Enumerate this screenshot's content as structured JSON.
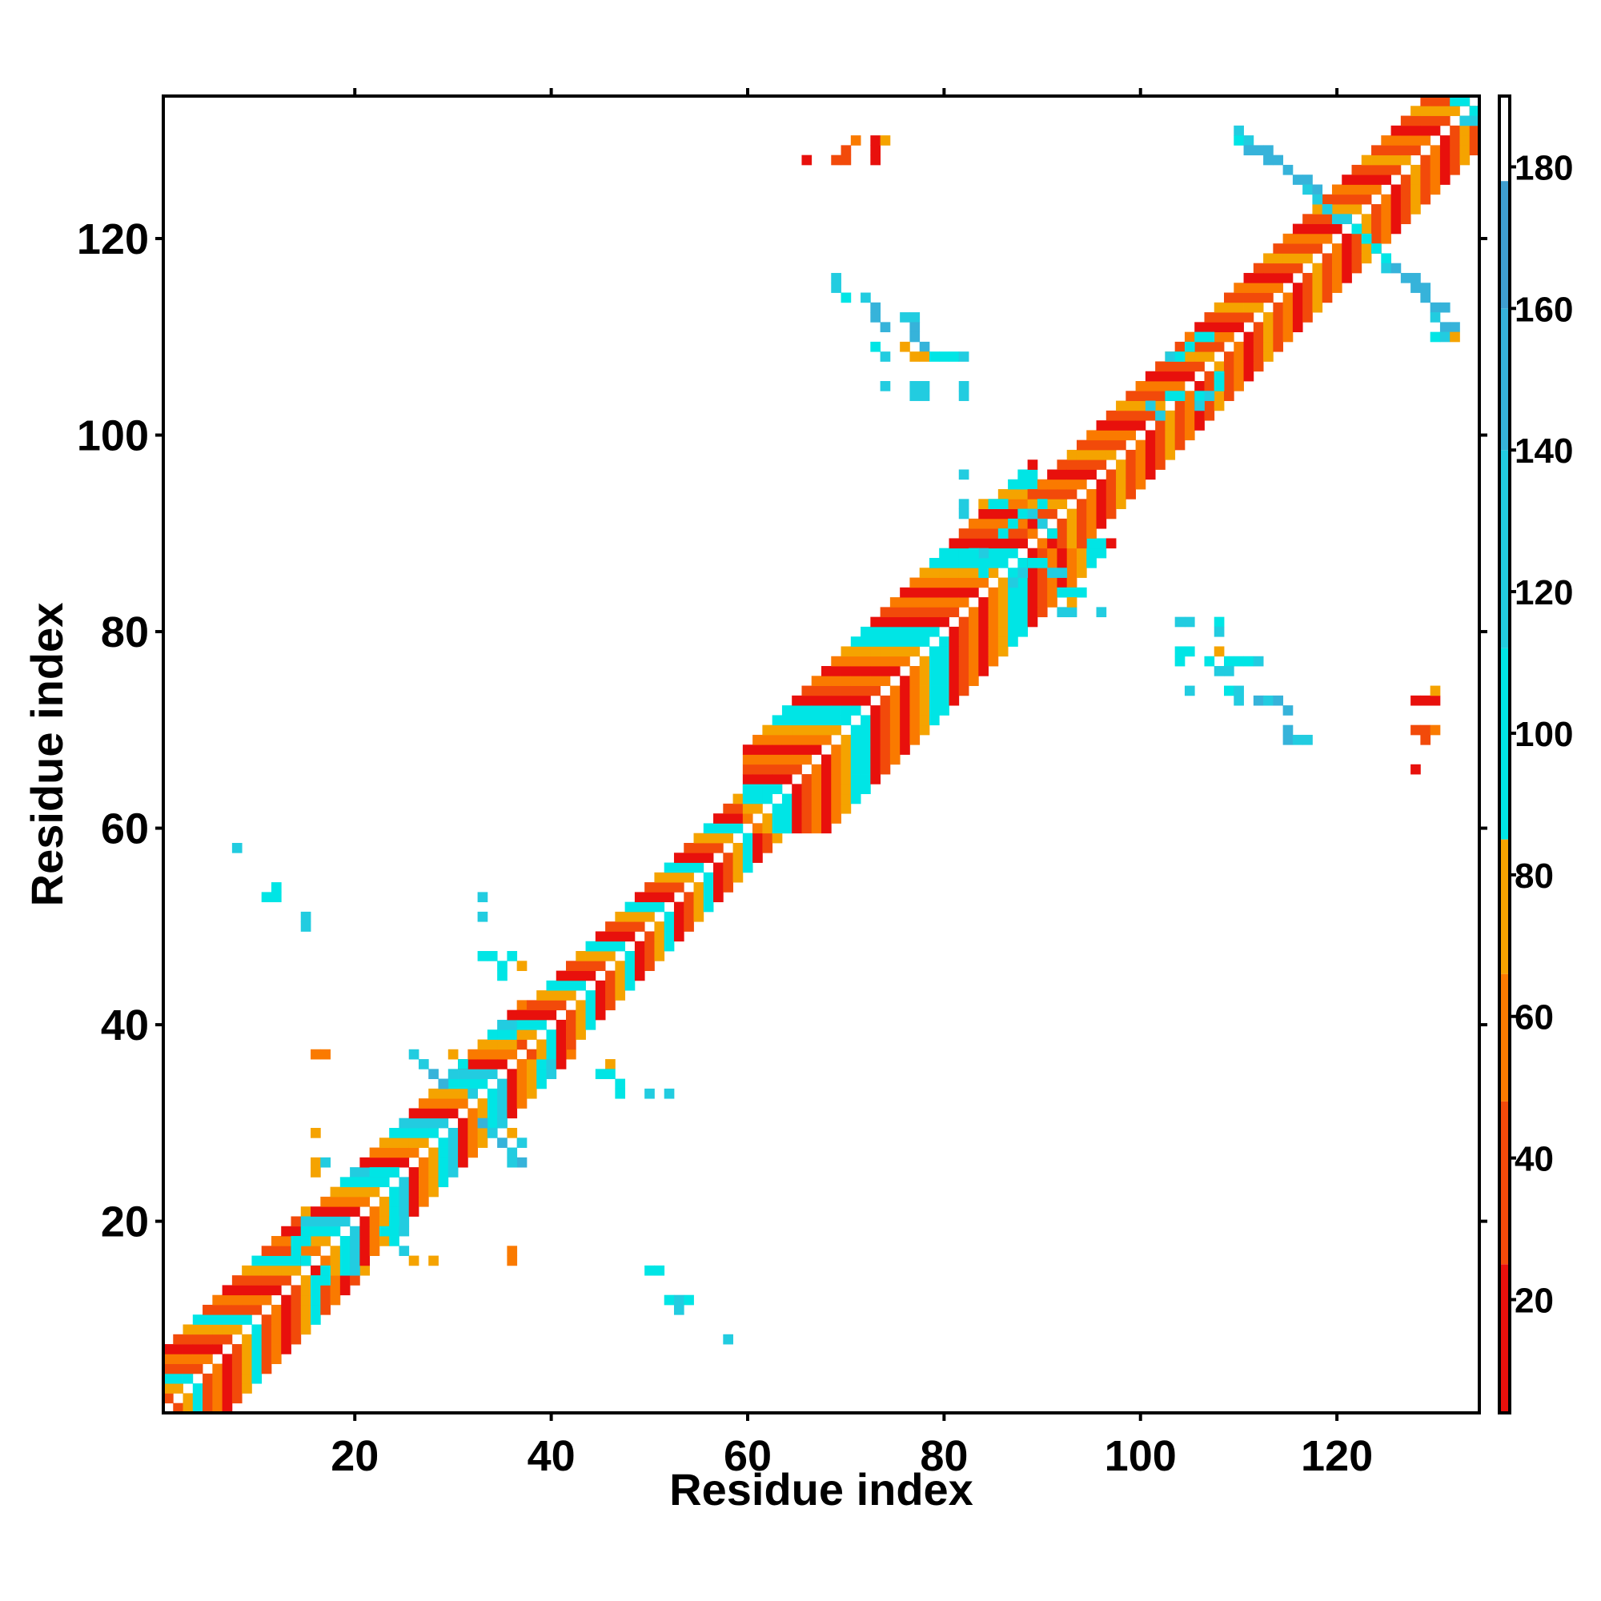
{
  "chart_data": {
    "type": "heatmap",
    "title": "",
    "xlabel": "Residue index",
    "ylabel": "Residue index",
    "x_range": [
      1,
      134
    ],
    "y_range": [
      1,
      134
    ],
    "x_ticks": [
      20,
      40,
      60,
      80,
      100,
      120
    ],
    "y_ticks": [
      20,
      40,
      60,
      80,
      100,
      120
    ],
    "colorbar": {
      "range": [
        4,
        190
      ],
      "ticks": [
        20,
        40,
        60,
        80,
        100,
        120,
        140,
        160,
        180
      ],
      "stops": [
        {
          "from": 4,
          "to": 25,
          "color": "#e8100c"
        },
        {
          "from": 25,
          "to": 48,
          "color": "#f24a0a"
        },
        {
          "from": 48,
          "to": 66,
          "color": "#fa7a00"
        },
        {
          "from": 66,
          "to": 85,
          "color": "#f5a300"
        },
        {
          "from": 85,
          "to": 112,
          "color": "#00e5e5"
        },
        {
          "from": 112,
          "to": 140,
          "color": "#22cce0"
        },
        {
          "from": 140,
          "to": 160,
          "color": "#36b3da"
        },
        {
          "from": 160,
          "to": 178,
          "color": "#3f9fd0"
        },
        {
          "from": 178,
          "to": 190,
          "color": "#ffffff"
        }
      ]
    },
    "grid": false,
    "legend": "colorbar-right",
    "diagonal_bands": [
      {
        "start": 1,
        "end": 15,
        "offsets": [
          1,
          2,
          3,
          4,
          5,
          6
        ],
        "values": [
          18,
          45,
          70,
          95,
          30,
          60
        ]
      },
      {
        "start": 15,
        "end": 37,
        "offsets": [
          1,
          2,
          3,
          4,
          5
        ],
        "values": [
          20,
          50,
          72,
          100,
          120
        ]
      },
      {
        "start": 37,
        "end": 60,
        "offsets": [
          1,
          2,
          3,
          4
        ],
        "values": [
          22,
          48,
          75,
          98
        ]
      },
      {
        "start": 60,
        "end": 89,
        "offsets": [
          1,
          2,
          3,
          4,
          5,
          6,
          7,
          8
        ],
        "values": [
          15,
          40,
          65,
          25,
          55,
          80,
          100,
          95
        ]
      },
      {
        "start": 89,
        "end": 134,
        "offsets": [
          1,
          2,
          3,
          4,
          5
        ],
        "values": [
          18,
          45,
          70,
          30,
          60
        ]
      }
    ],
    "contacts": [
      {
        "x": 8,
        "y": 58,
        "v": 140
      },
      {
        "x": 11,
        "y": 53,
        "v": 105
      },
      {
        "x": 12,
        "y": 54,
        "v": 110
      },
      {
        "x": 12,
        "y": 53,
        "v": 105
      },
      {
        "x": 15,
        "y": 50,
        "v": 120
      },
      {
        "x": 15,
        "y": 51,
        "v": 115
      },
      {
        "x": 33,
        "y": 53,
        "v": 140
      },
      {
        "x": 33,
        "y": 51,
        "v": 140
      },
      {
        "x": 33,
        "y": 47,
        "v": 105
      },
      {
        "x": 34,
        "y": 47,
        "v": 105
      },
      {
        "x": 35,
        "y": 46,
        "v": 105
      },
      {
        "x": 36,
        "y": 47,
        "v": 95
      },
      {
        "x": 37,
        "y": 46,
        "v": 75
      },
      {
        "x": 35,
        "y": 45,
        "v": 100
      },
      {
        "x": 16,
        "y": 37,
        "v": 55
      },
      {
        "x": 17,
        "y": 37,
        "v": 55
      },
      {
        "x": 16,
        "y": 29,
        "v": 75
      },
      {
        "x": 16,
        "y": 26,
        "v": 75
      },
      {
        "x": 16,
        "y": 25,
        "v": 75
      },
      {
        "x": 17,
        "y": 26,
        "v": 130
      },
      {
        "x": 25,
        "y": 17,
        "v": 140
      },
      {
        "x": 26,
        "y": 16,
        "v": 75
      },
      {
        "x": 28,
        "y": 16,
        "v": 75
      },
      {
        "x": 36,
        "y": 17,
        "v": 55
      },
      {
        "x": 36,
        "y": 16,
        "v": 55
      },
      {
        "x": 46,
        "y": 36,
        "v": 75
      },
      {
        "x": 45,
        "y": 35,
        "v": 100
      },
      {
        "x": 46,
        "y": 35,
        "v": 95
      },
      {
        "x": 47,
        "y": 34,
        "v": 100
      },
      {
        "x": 47,
        "y": 33,
        "v": 105
      },
      {
        "x": 50,
        "y": 33,
        "v": 140
      },
      {
        "x": 52,
        "y": 33,
        "v": 140
      },
      {
        "x": 50,
        "y": 15,
        "v": 100
      },
      {
        "x": 51,
        "y": 15,
        "v": 100
      },
      {
        "x": 52,
        "y": 12,
        "v": 110
      },
      {
        "x": 53,
        "y": 12,
        "v": 115
      },
      {
        "x": 54,
        "y": 12,
        "v": 110
      },
      {
        "x": 53,
        "y": 11,
        "v": 140
      },
      {
        "x": 58,
        "y": 8,
        "v": 140
      },
      {
        "x": 26,
        "y": 37,
        "v": 120
      },
      {
        "x": 27,
        "y": 36,
        "v": 140
      },
      {
        "x": 28,
        "y": 35,
        "v": 145
      },
      {
        "x": 29,
        "y": 34,
        "v": 150
      },
      {
        "x": 30,
        "y": 37,
        "v": 75
      },
      {
        "x": 31,
        "y": 36,
        "v": 100
      },
      {
        "x": 32,
        "y": 33,
        "v": 120
      },
      {
        "x": 33,
        "y": 30,
        "v": 145
      },
      {
        "x": 34,
        "y": 29,
        "v": 140
      },
      {
        "x": 35,
        "y": 28,
        "v": 145
      },
      {
        "x": 36,
        "y": 27,
        "v": 140
      },
      {
        "x": 35,
        "y": 30,
        "v": 140
      },
      {
        "x": 36,
        "y": 29,
        "v": 75
      },
      {
        "x": 37,
        "y": 28,
        "v": 120
      },
      {
        "x": 37,
        "y": 26,
        "v": 145
      },
      {
        "x": 36,
        "y": 26,
        "v": 140
      },
      {
        "x": 66,
        "y": 128,
        "v": 15
      },
      {
        "x": 69,
        "y": 128,
        "v": 40
      },
      {
        "x": 70,
        "y": 128,
        "v": 45
      },
      {
        "x": 70,
        "y": 129,
        "v": 40
      },
      {
        "x": 71,
        "y": 130,
        "v": 60
      },
      {
        "x": 73,
        "y": 128,
        "v": 18
      },
      {
        "x": 73,
        "y": 129,
        "v": 20
      },
      {
        "x": 73,
        "y": 130,
        "v": 25
      },
      {
        "x": 74,
        "y": 130,
        "v": 75
      },
      {
        "x": 69,
        "y": 116,
        "v": 140
      },
      {
        "x": 69,
        "y": 115,
        "v": 130
      },
      {
        "x": 70,
        "y": 114,
        "v": 110
      },
      {
        "x": 72,
        "y": 114,
        "v": 140
      },
      {
        "x": 73,
        "y": 113,
        "v": 145
      },
      {
        "x": 73,
        "y": 112,
        "v": 150
      },
      {
        "x": 74,
        "y": 111,
        "v": 145
      },
      {
        "x": 76,
        "y": 112,
        "v": 140
      },
      {
        "x": 77,
        "y": 112,
        "v": 140
      },
      {
        "x": 77,
        "y": 111,
        "v": 145
      },
      {
        "x": 77,
        "y": 110,
        "v": 150
      },
      {
        "x": 78,
        "y": 109,
        "v": 145
      },
      {
        "x": 73,
        "y": 109,
        "v": 100
      },
      {
        "x": 74,
        "y": 108,
        "v": 120
      },
      {
        "x": 76,
        "y": 109,
        "v": 75
      },
      {
        "x": 77,
        "y": 108,
        "v": 70
      },
      {
        "x": 78,
        "y": 108,
        "v": 75
      },
      {
        "x": 79,
        "y": 108,
        "v": 100
      },
      {
        "x": 81,
        "y": 108,
        "v": 110
      },
      {
        "x": 82,
        "y": 108,
        "v": 120
      },
      {
        "x": 80,
        "y": 108,
        "v": 105
      },
      {
        "x": 74,
        "y": 105,
        "v": 140
      },
      {
        "x": 77,
        "y": 105,
        "v": 120
      },
      {
        "x": 78,
        "y": 104,
        "v": 130
      },
      {
        "x": 77,
        "y": 104,
        "v": 130
      },
      {
        "x": 78,
        "y": 105,
        "v": 120
      },
      {
        "x": 82,
        "y": 105,
        "v": 140
      },
      {
        "x": 82,
        "y": 104,
        "v": 140
      },
      {
        "x": 82,
        "y": 96,
        "v": 140
      },
      {
        "x": 82,
        "y": 93,
        "v": 120
      },
      {
        "x": 82,
        "y": 92,
        "v": 120
      },
      {
        "x": 84,
        "y": 93,
        "v": 75
      },
      {
        "x": 85,
        "y": 93,
        "v": 100
      },
      {
        "x": 86,
        "y": 93,
        "v": 105
      },
      {
        "x": 92,
        "y": 84,
        "v": 100
      },
      {
        "x": 93,
        "y": 84,
        "v": 110
      },
      {
        "x": 94,
        "y": 84,
        "v": 110
      },
      {
        "x": 92,
        "y": 82,
        "v": 130
      },
      {
        "x": 93,
        "y": 82,
        "v": 130
      },
      {
        "x": 93,
        "y": 83,
        "v": 75
      },
      {
        "x": 96,
        "y": 82,
        "v": 140
      },
      {
        "x": 104,
        "y": 81,
        "v": 140
      },
      {
        "x": 105,
        "y": 81,
        "v": 140
      },
      {
        "x": 108,
        "y": 81,
        "v": 110
      },
      {
        "x": 108,
        "y": 80,
        "v": 120
      },
      {
        "x": 104,
        "y": 78,
        "v": 100
      },
      {
        "x": 104,
        "y": 77,
        "v": 110
      },
      {
        "x": 105,
        "y": 78,
        "v": 110
      },
      {
        "x": 107,
        "y": 77,
        "v": 100
      },
      {
        "x": 108,
        "y": 78,
        "v": 75
      },
      {
        "x": 109,
        "y": 77,
        "v": 100
      },
      {
        "x": 110,
        "y": 77,
        "v": 105
      },
      {
        "x": 111,
        "y": 77,
        "v": 105
      },
      {
        "x": 112,
        "y": 77,
        "v": 140
      },
      {
        "x": 108,
        "y": 76,
        "v": 120
      },
      {
        "x": 109,
        "y": 76,
        "v": 130
      },
      {
        "x": 105,
        "y": 74,
        "v": 140
      },
      {
        "x": 109,
        "y": 74,
        "v": 110
      },
      {
        "x": 110,
        "y": 74,
        "v": 130
      },
      {
        "x": 110,
        "y": 73,
        "v": 140
      },
      {
        "x": 112,
        "y": 73,
        "v": 145
      },
      {
        "x": 113,
        "y": 73,
        "v": 140
      },
      {
        "x": 114,
        "y": 73,
        "v": 150
      },
      {
        "x": 115,
        "y": 72,
        "v": 150
      },
      {
        "x": 115,
        "y": 70,
        "v": 145
      },
      {
        "x": 115,
        "y": 69,
        "v": 145
      },
      {
        "x": 116,
        "y": 69,
        "v": 140
      },
      {
        "x": 117,
        "y": 69,
        "v": 140
      },
      {
        "x": 128,
        "y": 73,
        "v": 15
      },
      {
        "x": 129,
        "y": 73,
        "v": 18
      },
      {
        "x": 130,
        "y": 73,
        "v": 20
      },
      {
        "x": 130,
        "y": 74,
        "v": 75
      },
      {
        "x": 128,
        "y": 70,
        "v": 40
      },
      {
        "x": 129,
        "y": 70,
        "v": 45
      },
      {
        "x": 130,
        "y": 70,
        "v": 60
      },
      {
        "x": 129,
        "y": 69,
        "v": 30
      },
      {
        "x": 128,
        "y": 66,
        "v": 15
      },
      {
        "x": 110,
        "y": 131,
        "v": 140
      },
      {
        "x": 110,
        "y": 130,
        "v": 110
      },
      {
        "x": 111,
        "y": 130,
        "v": 130
      },
      {
        "x": 111,
        "y": 129,
        "v": 145
      },
      {
        "x": 112,
        "y": 129,
        "v": 150
      },
      {
        "x": 113,
        "y": 129,
        "v": 145
      },
      {
        "x": 113,
        "y": 128,
        "v": 150
      },
      {
        "x": 114,
        "y": 128,
        "v": 145
      },
      {
        "x": 115,
        "y": 127,
        "v": 150
      },
      {
        "x": 116,
        "y": 126,
        "v": 145
      },
      {
        "x": 117,
        "y": 126,
        "v": 150
      },
      {
        "x": 117,
        "y": 125,
        "v": 140
      },
      {
        "x": 118,
        "y": 125,
        "v": 145
      },
      {
        "x": 118,
        "y": 124,
        "v": 140
      },
      {
        "x": 119,
        "y": 123,
        "v": 140
      },
      {
        "x": 120,
        "y": 122,
        "v": 140
      },
      {
        "x": 121,
        "y": 122,
        "v": 120
      },
      {
        "x": 122,
        "y": 121,
        "v": 110
      },
      {
        "x": 123,
        "y": 120,
        "v": 100
      },
      {
        "x": 124,
        "y": 119,
        "v": 100
      },
      {
        "x": 125,
        "y": 118,
        "v": 110
      },
      {
        "x": 125,
        "y": 117,
        "v": 140
      },
      {
        "x": 126,
        "y": 117,
        "v": 145
      },
      {
        "x": 127,
        "y": 116,
        "v": 150
      },
      {
        "x": 128,
        "y": 116,
        "v": 145
      },
      {
        "x": 128,
        "y": 115,
        "v": 150
      },
      {
        "x": 129,
        "y": 115,
        "v": 145
      },
      {
        "x": 129,
        "y": 114,
        "v": 150
      },
      {
        "x": 130,
        "y": 113,
        "v": 145
      },
      {
        "x": 131,
        "y": 113,
        "v": 150
      },
      {
        "x": 130,
        "y": 112,
        "v": 140
      },
      {
        "x": 131,
        "y": 111,
        "v": 145
      },
      {
        "x": 130,
        "y": 110,
        "v": 110
      },
      {
        "x": 131,
        "y": 110,
        "v": 120
      },
      {
        "x": 132,
        "y": 111,
        "v": 145
      },
      {
        "x": 132,
        "y": 110,
        "v": 75
      },
      {
        "x": 132,
        "y": 134,
        "v": 110
      },
      {
        "x": 133,
        "y": 134,
        "v": 105
      },
      {
        "x": 134,
        "y": 133,
        "v": 100
      },
      {
        "x": 133,
        "y": 132,
        "v": 140
      },
      {
        "x": 134,
        "y": 132,
        "v": 130
      },
      {
        "x": 103,
        "y": 108,
        "v": 120
      },
      {
        "x": 104,
        "y": 108,
        "v": 110
      },
      {
        "x": 105,
        "y": 109,
        "v": 105
      },
      {
        "x": 106,
        "y": 110,
        "v": 100
      },
      {
        "x": 107,
        "y": 110,
        "v": 110
      },
      {
        "x": 103,
        "y": 104,
        "v": 100
      },
      {
        "x": 104,
        "y": 104,
        "v": 110
      },
      {
        "x": 106,
        "y": 104,
        "v": 105
      },
      {
        "x": 106,
        "y": 103,
        "v": 120
      },
      {
        "x": 107,
        "y": 104,
        "v": 130
      },
      {
        "x": 108,
        "y": 105,
        "v": 105
      },
      {
        "x": 108,
        "y": 106,
        "v": 100
      },
      {
        "x": 101,
        "y": 103,
        "v": 140
      },
      {
        "x": 102,
        "y": 102,
        "v": 130
      },
      {
        "x": 86,
        "y": 90,
        "v": 100
      },
      {
        "x": 87,
        "y": 91,
        "v": 105
      },
      {
        "x": 88,
        "y": 92,
        "v": 110
      },
      {
        "x": 89,
        "y": 92,
        "v": 120
      },
      {
        "x": 90,
        "y": 93,
        "v": 110
      },
      {
        "x": 90,
        "y": 91,
        "v": 130
      },
      {
        "x": 91,
        "y": 90,
        "v": 100
      },
      {
        "x": 89,
        "y": 87,
        "v": 110
      },
      {
        "x": 90,
        "y": 87,
        "v": 100
      },
      {
        "x": 91,
        "y": 86,
        "v": 140
      },
      {
        "x": 92,
        "y": 86,
        "v": 130
      },
      {
        "x": 88,
        "y": 86,
        "v": 120
      },
      {
        "x": 87,
        "y": 85,
        "v": 140
      },
      {
        "x": 84,
        "y": 88,
        "v": 120
      },
      {
        "x": 83,
        "y": 88,
        "v": 100
      },
      {
        "x": 84,
        "y": 86,
        "v": 105
      },
      {
        "x": 20,
        "y": 24,
        "v": 100
      },
      {
        "x": 21,
        "y": 24,
        "v": 110
      },
      {
        "x": 22,
        "y": 25,
        "v": 105
      },
      {
        "x": 23,
        "y": 25,
        "v": 100
      },
      {
        "x": 24,
        "y": 25,
        "v": 110
      },
      {
        "x": 24,
        "y": 20,
        "v": 100
      },
      {
        "x": 25,
        "y": 19,
        "v": 140
      },
      {
        "x": 23,
        "y": 19,
        "v": 110
      },
      {
        "x": 24,
        "y": 18,
        "v": 100
      },
      {
        "x": 17,
        "y": 15,
        "v": 110
      },
      {
        "x": 17,
        "y": 14,
        "v": 100
      },
      {
        "x": 16,
        "y": 14,
        "v": 110
      },
      {
        "x": 15,
        "y": 16,
        "v": 105
      },
      {
        "x": 14,
        "y": 17,
        "v": 100
      },
      {
        "x": 14,
        "y": 18,
        "v": 105
      },
      {
        "x": 15,
        "y": 18,
        "v": 100
      }
    ]
  }
}
